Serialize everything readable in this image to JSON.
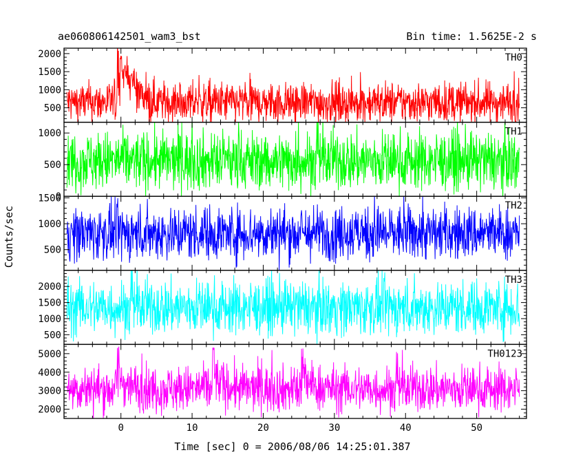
{
  "chart_data": {
    "type": "line",
    "title": "ae060806142501_wam3_bst",
    "subtitle": "Bin time: 1.5625E-2 s",
    "xlabel": "Time [sec] 0 = 2006/08/06 14:25:01.387",
    "ylabel": "Counts/sec",
    "xlim": [
      -8.0,
      57.0
    ],
    "xticks": [
      0,
      10,
      20,
      30,
      40,
      50
    ],
    "xtick_labels": [
      "0",
      "10",
      "20",
      "30",
      "40",
      "50"
    ],
    "data_x_range": [
      -7.6,
      56.0
    ],
    "grid": false,
    "legend": "none",
    "panels": [
      {
        "name": "TH0",
        "color": "#ff0000",
        "ylim": [
          100,
          2150
        ],
        "yticks": [
          500,
          1000,
          1500,
          2000
        ],
        "ytick_labels": [
          "500",
          "1000",
          "1500",
          "2000"
        ],
        "baseline": 650,
        "noise": 280,
        "events": [
          {
            "t": -0.4,
            "peak": 2150
          },
          {
            "t": 0.0,
            "peak": 1950
          },
          {
            "t": 0.6,
            "peak": 1650
          },
          {
            "t": 1.5,
            "peak": 1500
          }
        ]
      },
      {
        "name": "TH1",
        "color": "#00ff00",
        "ylim": [
          0,
          1170
        ],
        "yticks": [
          0,
          500,
          1000
        ],
        "ytick_labels": [
          "0",
          "500",
          "1000"
        ],
        "baseline": 560,
        "noise": 230,
        "events": []
      },
      {
        "name": "TH2",
        "color": "#0000ff",
        "ylim": [
          100,
          1530
        ],
        "yticks": [
          500,
          1000,
          1500
        ],
        "ytick_labels": [
          "500",
          "1000",
          "1500"
        ],
        "baseline": 820,
        "noise": 260,
        "events": []
      },
      {
        "name": "TH3",
        "color": "#00ffff",
        "ylim": [
          200,
          2500
        ],
        "yticks": [
          500,
          1000,
          1500,
          2000
        ],
        "ytick_labels": [
          "500",
          "1000",
          "1500",
          "2000"
        ],
        "baseline": 1350,
        "noise": 420,
        "events": []
      },
      {
        "name": "TH0123",
        "color": "#ff00ff",
        "ylim": [
          1500,
          5500
        ],
        "yticks": [
          2000,
          3000,
          4000,
          5000
        ],
        "ytick_labels": [
          "2000",
          "3000",
          "4000",
          "5000"
        ],
        "baseline": 3100,
        "noise": 620,
        "events": [
          {
            "t": -0.4,
            "peak": 5400
          },
          {
            "t": 13.0,
            "peak": 5350
          },
          {
            "t": 25.5,
            "peak": 5300
          }
        ]
      }
    ]
  }
}
